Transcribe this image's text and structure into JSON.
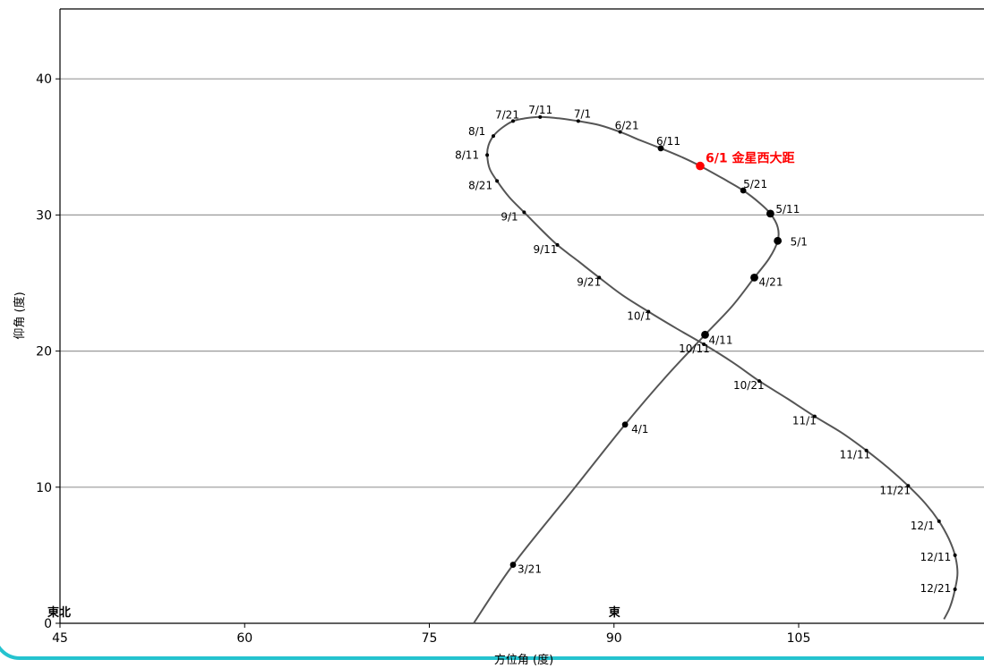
{
  "chart_data": {
    "type": "line",
    "xlabel": "方位角 (度)",
    "ylabel": "仰角 (度)",
    "xlim": [
      45,
      120
    ],
    "ylim": [
      0,
      45
    ],
    "xticks": [
      45,
      60,
      75,
      90,
      105
    ],
    "yticks": [
      0,
      10,
      20,
      30,
      40
    ],
    "grid": "horizontal",
    "line_color": "#555555",
    "highlight_color": "#ff0000",
    "direction_labels": [
      {
        "text": "東北",
        "x": 45
      },
      {
        "text": "東",
        "x": 90
      }
    ],
    "points": [
      {
        "date": "3/21",
        "az": 81.8,
        "el": 4.3,
        "size": "medium"
      },
      {
        "date": "4/1",
        "az": 90.9,
        "el": 14.6,
        "size": "medium"
      },
      {
        "date": "4/11",
        "az": 97.4,
        "el": 21.2,
        "size": "large"
      },
      {
        "date": "4/21",
        "az": 101.4,
        "el": 25.4,
        "size": "large"
      },
      {
        "date": "5/1",
        "az": 103.3,
        "el": 28.1,
        "size": "large"
      },
      {
        "date": "5/11",
        "az": 102.7,
        "el": 30.1,
        "size": "large"
      },
      {
        "date": "5/21",
        "az": 100.5,
        "el": 31.8,
        "size": "medium"
      },
      {
        "date": "6/1",
        "az": 97.0,
        "el": 33.6,
        "size": "highlight",
        "annotation": "6/1 金星西大距"
      },
      {
        "date": "6/11",
        "az": 93.8,
        "el": 34.9,
        "size": "medium"
      },
      {
        "date": "6/21",
        "az": 90.5,
        "el": 36.1,
        "size": "small"
      },
      {
        "date": "7/1",
        "az": 87.1,
        "el": 36.9,
        "size": "small"
      },
      {
        "date": "7/11",
        "az": 84.0,
        "el": 37.2,
        "size": "small"
      },
      {
        "date": "7/21",
        "az": 81.8,
        "el": 36.9,
        "size": "small"
      },
      {
        "date": "8/1",
        "az": 80.2,
        "el": 35.8,
        "size": "small"
      },
      {
        "date": "8/11",
        "az": 79.7,
        "el": 34.4,
        "size": "small"
      },
      {
        "date": "8/21",
        "az": 80.5,
        "el": 32.5,
        "size": "small"
      },
      {
        "date": "9/1",
        "az": 82.7,
        "el": 30.2,
        "size": "small"
      },
      {
        "date": "9/11",
        "az": 85.4,
        "el": 27.8,
        "size": "small"
      },
      {
        "date": "9/21",
        "az": 88.8,
        "el": 25.4,
        "size": "small"
      },
      {
        "date": "10/1",
        "az": 92.8,
        "el": 22.9,
        "size": "small"
      },
      {
        "date": "10/11",
        "az": 97.3,
        "el": 20.5,
        "size": "small"
      },
      {
        "date": "10/21",
        "az": 101.8,
        "el": 17.8,
        "size": "small"
      },
      {
        "date": "11/1",
        "az": 106.3,
        "el": 15.2,
        "size": "small"
      },
      {
        "date": "11/11",
        "az": 110.5,
        "el": 12.7,
        "size": "small"
      },
      {
        "date": "11/21",
        "az": 113.9,
        "el": 10.1,
        "size": "small"
      },
      {
        "date": "12/1",
        "az": 116.4,
        "el": 7.5,
        "size": "small"
      },
      {
        "date": "12/11",
        "az": 117.7,
        "el": 5.0,
        "size": "small"
      },
      {
        "date": "12/21",
        "az": 117.7,
        "el": 2.5,
        "size": "small"
      }
    ],
    "curve": [
      [
        78.6,
        0
      ],
      [
        81.8,
        4.3
      ],
      [
        86.4,
        9.5
      ],
      [
        90.9,
        14.6
      ],
      [
        94.3,
        18.2
      ],
      [
        97.4,
        21.2
      ],
      [
        99.6,
        23.3
      ],
      [
        101.4,
        25.4
      ],
      [
        102.6,
        26.8
      ],
      [
        103.3,
        28.1
      ],
      [
        103.3,
        29.1
      ],
      [
        102.7,
        30.1
      ],
      [
        101.8,
        30.9
      ],
      [
        100.5,
        31.8
      ],
      [
        98.8,
        32.7
      ],
      [
        97.0,
        33.6
      ],
      [
        95.4,
        34.3
      ],
      [
        93.8,
        34.9
      ],
      [
        92.1,
        35.5
      ],
      [
        90.5,
        36.1
      ],
      [
        88.8,
        36.6
      ],
      [
        87.1,
        36.9
      ],
      [
        85.5,
        37.1
      ],
      [
        84.0,
        37.2
      ],
      [
        82.8,
        37.1
      ],
      [
        81.8,
        36.9
      ],
      [
        80.9,
        36.4
      ],
      [
        80.2,
        35.8
      ],
      [
        79.8,
        35.1
      ],
      [
        79.7,
        34.4
      ],
      [
        79.9,
        33.4
      ],
      [
        80.5,
        32.5
      ],
      [
        81.5,
        31.3
      ],
      [
        82.7,
        30.2
      ],
      [
        84.0,
        29.0
      ],
      [
        85.4,
        27.8
      ],
      [
        87.1,
        26.6
      ],
      [
        88.8,
        25.4
      ],
      [
        90.7,
        24.1
      ],
      [
        92.8,
        22.9
      ],
      [
        95.0,
        21.7
      ],
      [
        97.3,
        20.5
      ],
      [
        99.6,
        19.2
      ],
      [
        101.8,
        17.8
      ],
      [
        104.1,
        16.5
      ],
      [
        106.3,
        15.2
      ],
      [
        108.5,
        14.0
      ],
      [
        110.5,
        12.7
      ],
      [
        112.3,
        11.4
      ],
      [
        113.9,
        10.1
      ],
      [
        115.3,
        8.8
      ],
      [
        116.4,
        7.5
      ],
      [
        117.2,
        6.2
      ],
      [
        117.7,
        5.0
      ],
      [
        117.9,
        3.7
      ],
      [
        117.7,
        2.5
      ],
      [
        117.3,
        1.2
      ],
      [
        116.8,
        0.3
      ]
    ]
  }
}
